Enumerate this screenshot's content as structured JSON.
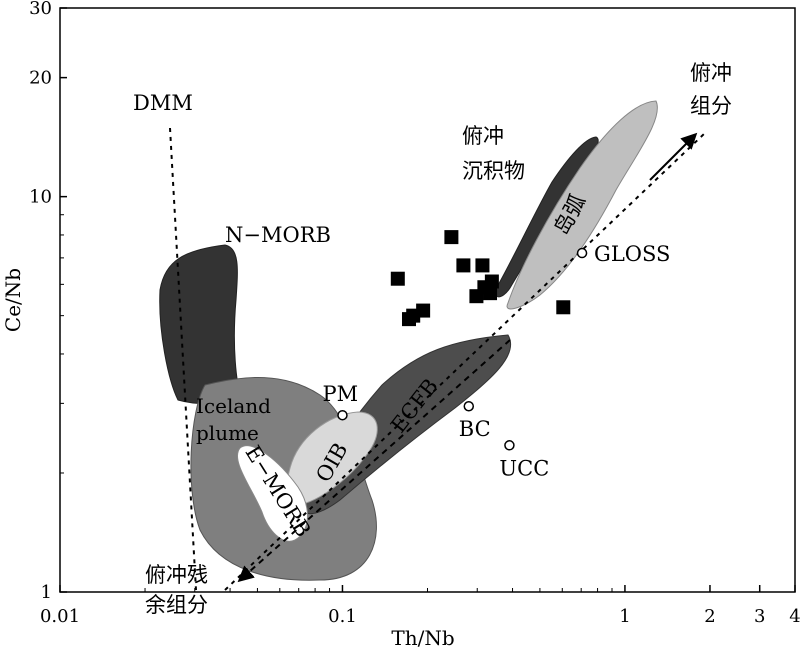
{
  "chart_data": {
    "type": "scatter",
    "x_scale": "log",
    "y_scale": "log",
    "xlim": [
      0.01,
      4
    ],
    "ylim": [
      1,
      30
    ],
    "grid": false,
    "xlabel": "Th/Nb",
    "ylabel": "Ce/Nb",
    "x_ticks": [
      {
        "value": 0.01,
        "label": "0.01"
      },
      {
        "value": 0.1,
        "label": "0.1"
      },
      {
        "value": 1,
        "label": "1"
      },
      {
        "value": 2,
        "label": "2"
      },
      {
        "value": 3,
        "label": "3"
      },
      {
        "value": 4,
        "label": "4"
      }
    ],
    "y_ticks": [
      {
        "value": 1,
        "label": "1"
      },
      {
        "value": 10,
        "label": "10"
      },
      {
        "value": 20,
        "label": "20"
      },
      {
        "value": 30,
        "label": "30"
      }
    ],
    "samples": {
      "marker": "filled-square",
      "points": [
        {
          "x": 0.157,
          "y": 6.2
        },
        {
          "x": 0.172,
          "y": 4.9
        },
        {
          "x": 0.178,
          "y": 5.0
        },
        {
          "x": 0.193,
          "y": 5.15
        },
        {
          "x": 0.243,
          "y": 7.9
        },
        {
          "x": 0.268,
          "y": 6.7
        },
        {
          "x": 0.298,
          "y": 5.6
        },
        {
          "x": 0.313,
          "y": 6.7
        },
        {
          "x": 0.318,
          "y": 5.9
        },
        {
          "x": 0.333,
          "y": 5.7
        },
        {
          "x": 0.338,
          "y": 6.1
        },
        {
          "x": 0.605,
          "y": 5.25
        }
      ]
    },
    "reference_points": [
      {
        "label": "PM",
        "x": 0.1,
        "y": 2.8
      },
      {
        "label": "BC",
        "x": 0.28,
        "y": 2.95
      },
      {
        "label": "UCC",
        "x": 0.39,
        "y": 2.35
      },
      {
        "label": "GLOSS",
        "x": 0.705,
        "y": 7.2
      }
    ],
    "fields": [
      {
        "label": "N-MORB",
        "color": "#333333"
      },
      {
        "label": "Iceland plume",
        "color": "#7f7f7f"
      },
      {
        "label": "ECFB",
        "color": "#4d4d4d"
      },
      {
        "label": "OIB",
        "color": "#d9d9d9"
      },
      {
        "label": "E-MORB",
        "color": "#ffffff"
      },
      {
        "label": "俯冲沉积物",
        "color": "#333333"
      },
      {
        "label": "岛弧",
        "color": "#bfbfbf"
      }
    ],
    "annotations": {
      "dmm": "DMM",
      "subduction_component": "俯冲组分",
      "subduction_residue": "俯冲残余组分"
    }
  },
  "text": {
    "n_morb": "N−MORB",
    "iceland_1": "Iceland",
    "iceland_2": "plume",
    "ecfb": "ECFB",
    "oib": "OIB",
    "e_morb": "E−MORB",
    "island_arc": "岛弧",
    "sediment_1": "俯冲",
    "sediment_2": "沉积物",
    "component_1": "俯冲",
    "component_2": "组分",
    "residue_1": "俯冲残",
    "residue_2": "余组分",
    "dmm": "DMM"
  }
}
